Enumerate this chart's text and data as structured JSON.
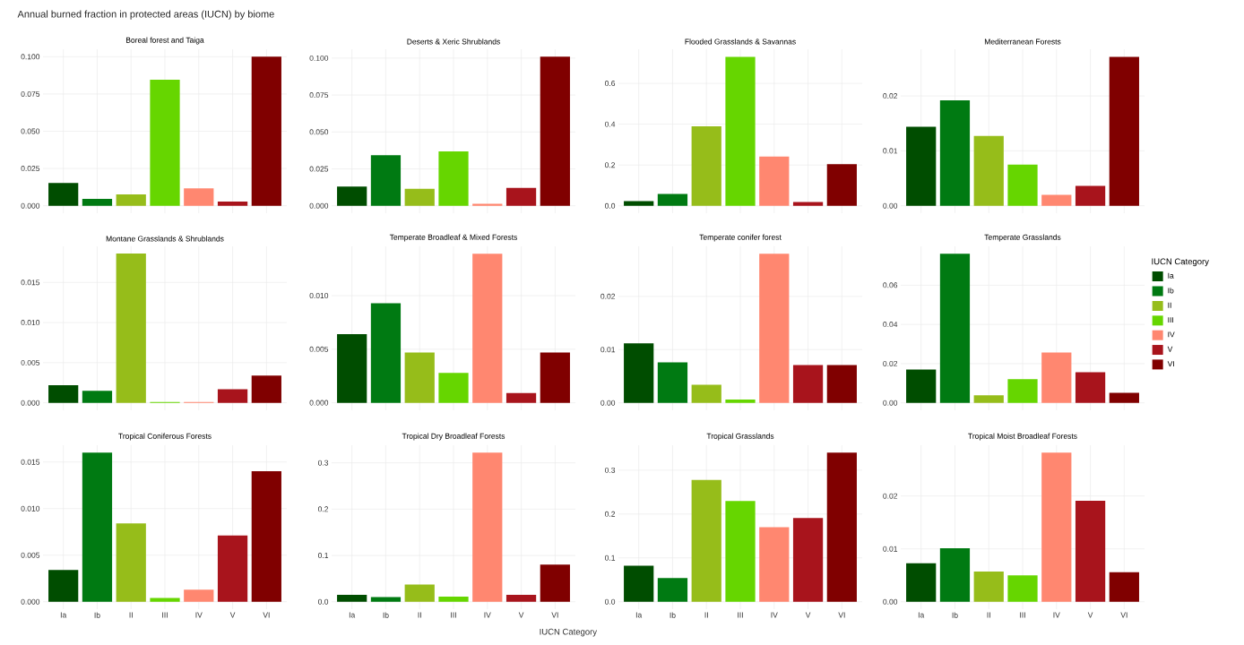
{
  "chart_data": [
    {
      "type": "bar",
      "title": "Boreal forest and Taiga",
      "annotations": [
        "Annual burned fraction in protected areas (IUCN) by biome"
      ],
      "categories": [
        null,
        null,
        null,
        null,
        null,
        null,
        null
      ],
      "values": [
        0.0153,
        0.0046,
        0.0076,
        0.0845,
        0.0117,
        0.0028,
        0.1
      ],
      "colors": [
        "#004d00",
        "#007a12",
        "#96bd1a",
        "#66d600",
        "#ff8770",
        "#a8141c",
        "#800000"
      ],
      "ylim": [
        -0.005,
        0.105
      ],
      "yticks": [
        {
          "value": 0,
          "label": "0.000"
        },
        {
          "value": 0.025,
          "label": "0.025"
        },
        {
          "value": 0.05,
          "label": "0.050"
        },
        {
          "value": 0.075,
          "label": "0.075"
        },
        {
          "value": 0.1,
          "label": "0.100"
        }
      ],
      "grid": true,
      "tick_labels": "y"
    },
    {
      "type": "bar",
      "title": "Deserts & Xeric Shrublands",
      "categories": [
        null,
        null,
        null,
        null,
        null,
        null,
        null
      ],
      "values": [
        0.0131,
        0.0343,
        0.0116,
        0.0369,
        0.0013,
        0.0121,
        0.101
      ],
      "colors": [
        "#004d00",
        "#007a12",
        "#96bd1a",
        "#66d600",
        "#ff8770",
        "#a8141c",
        "#800000"
      ],
      "ylim": [
        -0.005,
        0.106
      ],
      "yticks": [
        {
          "value": 0,
          "label": "0.000"
        },
        {
          "value": 0.025,
          "label": "0.025"
        },
        {
          "value": 0.05,
          "label": "0.050"
        },
        {
          "value": 0.075,
          "label": "0.075"
        },
        {
          "value": 0.1,
          "label": "0.100"
        }
      ],
      "grid": true,
      "tick_labels": "y"
    },
    {
      "type": "bar",
      "title": "Flooded Grasslands & Savannas",
      "categories": [
        null,
        null,
        null,
        null,
        null,
        null,
        null
      ],
      "values": [
        0.023,
        0.058,
        0.39,
        0.73,
        0.242,
        0.019,
        0.204
      ],
      "colors": [
        "#004d00",
        "#007a12",
        "#96bd1a",
        "#66d600",
        "#ff8770",
        "#a8141c",
        "#800000"
      ],
      "ylim": [
        -0.036,
        0.767
      ],
      "yticks": [
        {
          "value": 0,
          "label": "0.0"
        },
        {
          "value": 0.2,
          "label": "0.2"
        },
        {
          "value": 0.4,
          "label": "0.4"
        },
        {
          "value": 0.6,
          "label": "0.6"
        }
      ],
      "grid": true,
      "tick_labels": "y"
    },
    {
      "type": "bar",
      "title": "Mediterranean Forests",
      "categories": [
        null,
        null,
        null,
        null,
        null,
        null,
        null
      ],
      "values": [
        0.0144,
        0.0192,
        0.0127,
        0.0075,
        0.002,
        0.0036,
        0.0271
      ],
      "colors": [
        "#004d00",
        "#007a12",
        "#96bd1a",
        "#66d600",
        "#ff8770",
        "#a8141c",
        "#800000"
      ],
      "ylim": [
        -0.00136,
        0.0285
      ],
      "yticks": [
        {
          "value": 0,
          "label": "0.00"
        },
        {
          "value": 0.01,
          "label": "0.01"
        },
        {
          "value": 0.02,
          "label": "0.02"
        }
      ],
      "grid": true,
      "tick_labels": "y"
    },
    {
      "type": "bar",
      "title": "Montane Grasslands & Shrublands",
      "categories": [
        null,
        null,
        null,
        null,
        null,
        null,
        null
      ],
      "values": [
        0.0022,
        0.0015,
        0.0186,
        0.0001,
        0.0001,
        0.0017,
        0.0034
      ],
      "colors": [
        "#004d00",
        "#007a12",
        "#96bd1a",
        "#66d600",
        "#ff8770",
        "#a8141c",
        "#800000"
      ],
      "ylim": [
        -0.00093,
        0.0195
      ],
      "yticks": [
        {
          "value": 0,
          "label": "0.000"
        },
        {
          "value": 0.005,
          "label": "0.005"
        },
        {
          "value": 0.01,
          "label": "0.010"
        },
        {
          "value": 0.015,
          "label": "0.015"
        }
      ],
      "grid": true,
      "tick_labels": "y"
    },
    {
      "type": "bar",
      "title": "Temperate Broadleaf & Mixed Forests",
      "categories": [
        null,
        null,
        null,
        null,
        null,
        null,
        null
      ],
      "values": [
        0.0064,
        0.0093,
        0.0047,
        0.0028,
        0.0139,
        0.0009,
        0.0047
      ],
      "colors": [
        "#004d00",
        "#007a12",
        "#96bd1a",
        "#66d600",
        "#ff8770",
        "#a8141c",
        "#800000"
      ],
      "ylim": [
        -0.0007,
        0.0146
      ],
      "yticks": [
        {
          "value": 0,
          "label": "0.000"
        },
        {
          "value": 0.005,
          "label": "0.005"
        },
        {
          "value": 0.01,
          "label": "0.010"
        }
      ],
      "grid": true,
      "tick_labels": "y"
    },
    {
      "type": "bar",
      "title": "Temperate conifer forest",
      "categories": [
        null,
        null,
        null,
        null,
        null,
        null,
        null
      ],
      "values": [
        0.0112,
        0.0076,
        0.0034,
        0.0006,
        0.028,
        0.0071,
        0.0071
      ],
      "colors": [
        "#004d00",
        "#007a12",
        "#96bd1a",
        "#66d600",
        "#ff8770",
        "#a8141c",
        "#800000"
      ],
      "ylim": [
        -0.0014,
        0.0294
      ],
      "yticks": [
        {
          "value": 0,
          "label": "0.00"
        },
        {
          "value": 0.01,
          "label": "0.01"
        },
        {
          "value": 0.02,
          "label": "0.02"
        }
      ],
      "grid": true,
      "tick_labels": "y"
    },
    {
      "type": "bar",
      "title": "Temperate Grasslands",
      "legend_title": "IUCN Category",
      "legend": "right",
      "categories": [
        null,
        null,
        null,
        null,
        null,
        null,
        null
      ],
      "series": [
        {
          "name": "Ia",
          "color": "#004d00",
          "values": [
            0.017,
            null,
            null,
            null,
            null,
            null,
            null
          ]
        },
        {
          "name": "Ib",
          "color": "#007a12",
          "values": [
            null,
            0.076,
            null,
            null,
            null,
            null,
            null
          ]
        },
        {
          "name": "II",
          "color": "#96bd1a",
          "values": [
            null,
            null,
            0.0039,
            null,
            null,
            null,
            null
          ]
        },
        {
          "name": "III",
          "color": "#66d600",
          "values": [
            null,
            null,
            null,
            0.0121,
            null,
            null,
            null
          ]
        },
        {
          "name": "IV",
          "color": "#ff8770",
          "values": [
            null,
            null,
            null,
            null,
            0.0257,
            null,
            null
          ]
        },
        {
          "name": "V",
          "color": "#a8141c",
          "values": [
            null,
            null,
            null,
            null,
            null,
            0.0156,
            null
          ]
        },
        {
          "name": "VI",
          "color": "#800000",
          "values": [
            null,
            null,
            null,
            null,
            null,
            null,
            0.0051
          ]
        }
      ],
      "ylim": [
        -0.0038,
        0.0798
      ],
      "yticks": [
        {
          "value": 0,
          "label": "0.00"
        },
        {
          "value": 0.02,
          "label": "0.02"
        },
        {
          "value": 0.04,
          "label": "0.04"
        },
        {
          "value": 0.06,
          "label": "0.06"
        }
      ],
      "grid": true,
      "tick_labels": "y"
    },
    {
      "type": "bar",
      "title": "Tropical Coniferous Forests",
      "categories": [
        "Ia",
        "Ib",
        "II",
        "III",
        "IV",
        "V",
        "VI"
      ],
      "values": [
        0.0034,
        0.016,
        0.0084,
        0.0004,
        0.0013,
        0.0071,
        0.014
      ],
      "colors": [
        "#004d00",
        "#007a12",
        "#96bd1a",
        "#66d600",
        "#ff8770",
        "#a8141c",
        "#800000"
      ],
      "ylim": [
        -0.0008,
        0.0168
      ],
      "yticks": [
        {
          "value": 0,
          "label": "0.000"
        },
        {
          "value": 0.005,
          "label": "0.005"
        },
        {
          "value": 0.01,
          "label": "0.010"
        },
        {
          "value": 0.015,
          "label": "0.015"
        }
      ],
      "grid": true
    },
    {
      "type": "bar",
      "title": "Tropical Dry Broadleaf Forests",
      "xlabel": "IUCN Category",
      "categories": [
        "Ia",
        "Ib",
        "II",
        "III",
        "IV",
        "V",
        "VI"
      ],
      "values": [
        0.015,
        0.01,
        0.037,
        0.011,
        0.322,
        0.015,
        0.08
      ],
      "colors": [
        "#004d00",
        "#007a12",
        "#96bd1a",
        "#66d600",
        "#ff8770",
        "#a8141c",
        "#800000"
      ],
      "ylim": [
        -0.016,
        0.338
      ],
      "yticks": [
        {
          "value": 0,
          "label": "0.0"
        },
        {
          "value": 0.1,
          "label": "0.1"
        },
        {
          "value": 0.2,
          "label": "0.2"
        },
        {
          "value": 0.3,
          "label": "0.3"
        }
      ],
      "grid": true
    },
    {
      "type": "bar",
      "title": "Tropical Grasslands",
      "categories": [
        "Ia",
        "Ib",
        "II",
        "III",
        "IV",
        "V",
        "VI"
      ],
      "values": [
        0.082,
        0.054,
        0.278,
        0.23,
        0.17,
        0.191,
        0.34
      ],
      "colors": [
        "#004d00",
        "#007a12",
        "#96bd1a",
        "#66d600",
        "#ff8770",
        "#a8141c",
        "#800000"
      ],
      "ylim": [
        -0.017,
        0.357
      ],
      "yticks": [
        {
          "value": 0,
          "label": "0.0"
        },
        {
          "value": 0.1,
          "label": "0.1"
        },
        {
          "value": 0.2,
          "label": "0.2"
        },
        {
          "value": 0.3,
          "label": "0.3"
        }
      ],
      "grid": true
    },
    {
      "type": "bar",
      "title": "Tropical Moist Broadleaf Forests",
      "categories": [
        "Ia",
        "Ib",
        "II",
        "III",
        "IV",
        "V",
        "VI"
      ],
      "values": [
        0.0073,
        0.0101,
        0.0057,
        0.005,
        0.0282,
        0.0191,
        0.0056
      ],
      "colors": [
        "#004d00",
        "#007a12",
        "#96bd1a",
        "#66d600",
        "#ff8770",
        "#a8141c",
        "#800000"
      ],
      "ylim": [
        -0.0014,
        0.0296
      ],
      "yticks": [
        {
          "value": 0,
          "label": "0.00"
        },
        {
          "value": 0.01,
          "label": "0.01"
        },
        {
          "value": 0.02,
          "label": "0.02"
        }
      ],
      "grid": true
    }
  ]
}
